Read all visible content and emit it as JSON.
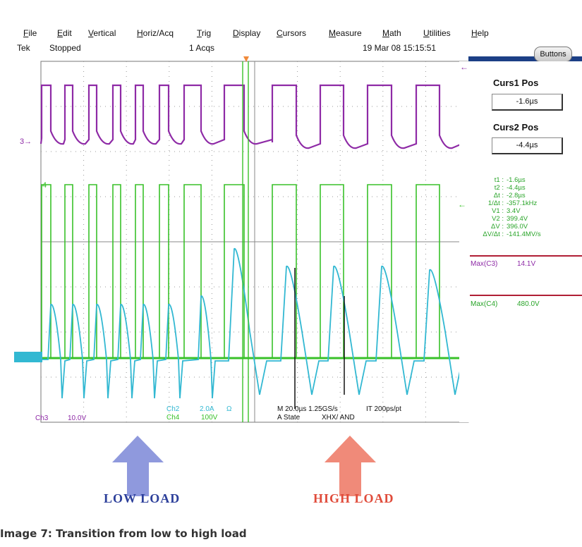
{
  "menu": {
    "items": [
      "File",
      "Edit",
      "Vertical",
      "Horiz/Acq",
      "Trig",
      "Display",
      "Cursors",
      "Measure",
      "Math",
      "Utilities",
      "Help"
    ]
  },
  "status": {
    "brand": "Tek",
    "state": "Stopped",
    "acqs": "1 Acqs",
    "datetime": "19 Mar 08 15:15:51"
  },
  "panel": {
    "buttons_label": "Buttons",
    "curs1_title": "Curs1 Pos",
    "curs1_value": "-1.6µs",
    "curs2_title": "Curs2 Pos",
    "curs2_value": "-4.4µs",
    "readouts": [
      {
        "label": "t1 :",
        "value": "-1.6µs"
      },
      {
        "label": "t2 :",
        "value": "-4.4µs"
      },
      {
        "label": "Δt :",
        "value": "-2.8µs"
      },
      {
        "label": "1/Δt :",
        "value": "-357.1kHz"
      },
      {
        "label": "V1 :",
        "value": "3.4V"
      },
      {
        "label": "V2 :",
        "value": "399.4V"
      },
      {
        "label": "ΔV :",
        "value": "396.0V"
      },
      {
        "label": "ΔV/Δt :",
        "value": "-141.4MV/s"
      }
    ],
    "math1_label": "Max(C3)",
    "math1_value": "14.1V",
    "math2_label": "Max(C4)",
    "math2_value": "480.0V"
  },
  "bottom": {
    "ch3_label": "Ch3",
    "ch3_scale": "10.0V",
    "ch2_label": "Ch2",
    "ch2_scale": "2.0A",
    "ch2_unit": "Ω",
    "ch4_label": "Ch4",
    "ch4_scale": "100V",
    "timebase": "M 20.0µs  1.25GS/s",
    "resolution": "IT 200ps/pt",
    "trigger": "A  State",
    "trigger_cond": "XHX/  AND"
  },
  "markers": {
    "ch3_marker": "3",
    "ch4_marker": "4"
  },
  "arrows": {
    "low_label": "LOW LOAD",
    "high_label": "HIGH LOAD"
  },
  "caption": "Image 7: Transition from low to high load",
  "colors": {
    "ch3_purple": "#8e2aa6",
    "ch4_green": "#39c129",
    "ch2_cyan": "#32b8d2",
    "low_arrow": "#8f99dd",
    "high_arrow": "#f08a79",
    "low_text": "#2c3f9a",
    "high_text": "#e04b3a",
    "readout_green": "#28a428",
    "math_red": "#b01e35"
  }
}
